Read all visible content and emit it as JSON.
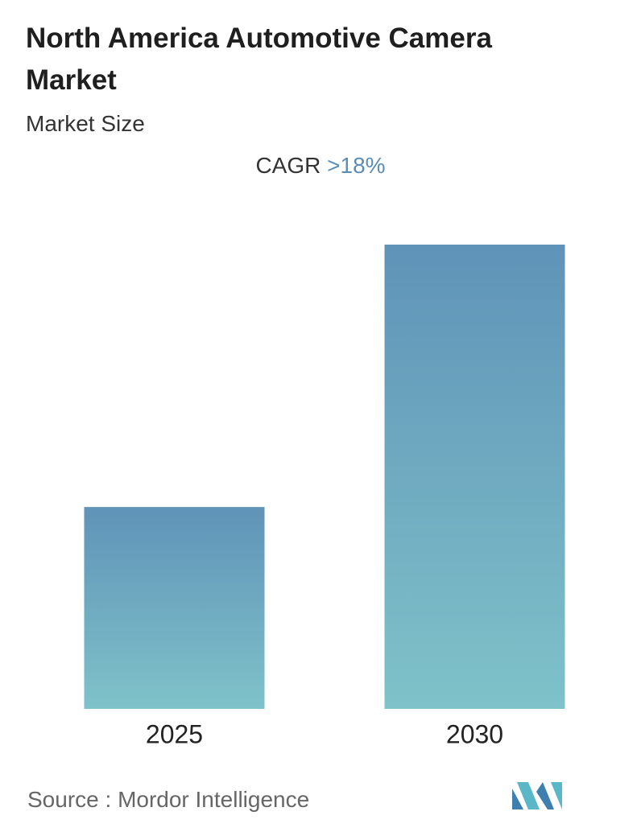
{
  "chart_data": {
    "type": "bar",
    "title": "North America Automotive Camera Market",
    "subtitle": "Market Size",
    "cagr_label": "CAGR",
    "cagr_value": ">18%",
    "categories": [
      "2025",
      "2030"
    ],
    "values": [
      1,
      2.3
    ],
    "ylim": [
      0,
      2.3
    ],
    "color": [
      "#5f93b8",
      "#7fc2c9"
    ],
    "source_label": "Source :",
    "source": "Mordor Intelligence"
  }
}
